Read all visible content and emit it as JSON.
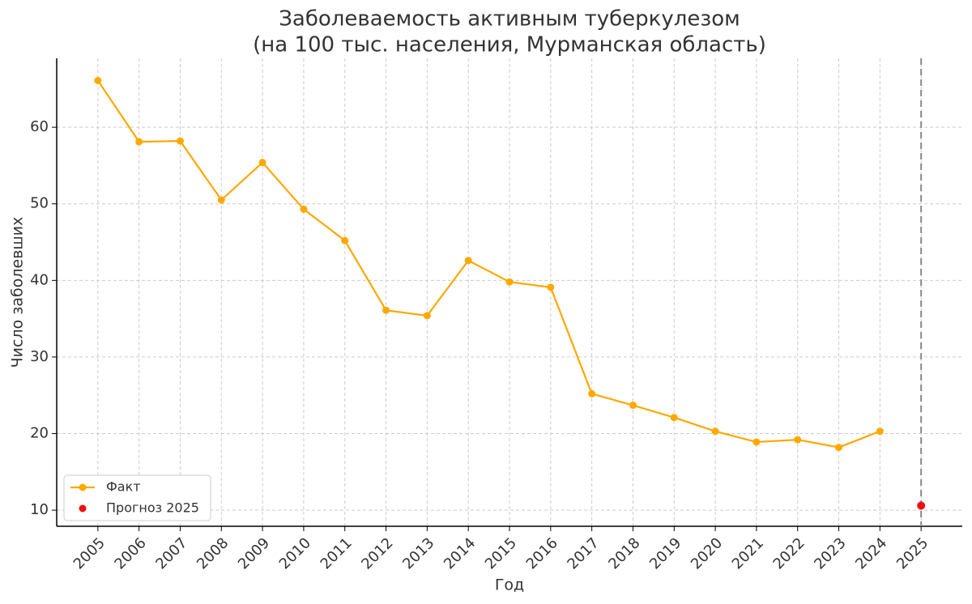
{
  "chart_data": {
    "type": "line",
    "title": [
      "Заболеваемость активным туберкулезом",
      "(на 100 тыс. населения, Мурманская область)"
    ],
    "x_label": "Год",
    "y_label": "Число заболевших",
    "xlim": [
      2004,
      2026
    ],
    "ylim": [
      7.9,
      69.0
    ],
    "xticks": [
      2005,
      2006,
      2007,
      2008,
      2009,
      2010,
      2011,
      2012,
      2013,
      2014,
      2015,
      2016,
      2017,
      2018,
      2019,
      2020,
      2021,
      2022,
      2023,
      2024,
      2025
    ],
    "yticks": [
      10,
      20,
      30,
      40,
      50,
      60
    ],
    "grid": true,
    "legend": "lower left",
    "series": [
      {
        "name": "Факт",
        "color": "#ffa800",
        "style": "line",
        "x": [
          2005,
          2006,
          2007,
          2008,
          2009,
          2010,
          2011,
          2012,
          2013,
          2014,
          2015,
          2016,
          2017,
          2018,
          2019,
          2020,
          2021,
          2022,
          2023,
          2024
        ],
        "values": [
          66.1,
          58.1,
          58.2,
          50.5,
          55.4,
          49.3,
          45.2,
          36.1,
          35.4,
          42.6,
          39.8,
          39.1,
          25.2,
          23.7,
          22.1,
          20.3,
          18.9,
          19.2,
          18.2,
          20.3
        ]
      },
      {
        "name": "Прогноз 2025",
        "color": "#ee1111",
        "style": "scatter",
        "x": [
          2025
        ],
        "values": [
          10.6
        ]
      }
    ]
  }
}
